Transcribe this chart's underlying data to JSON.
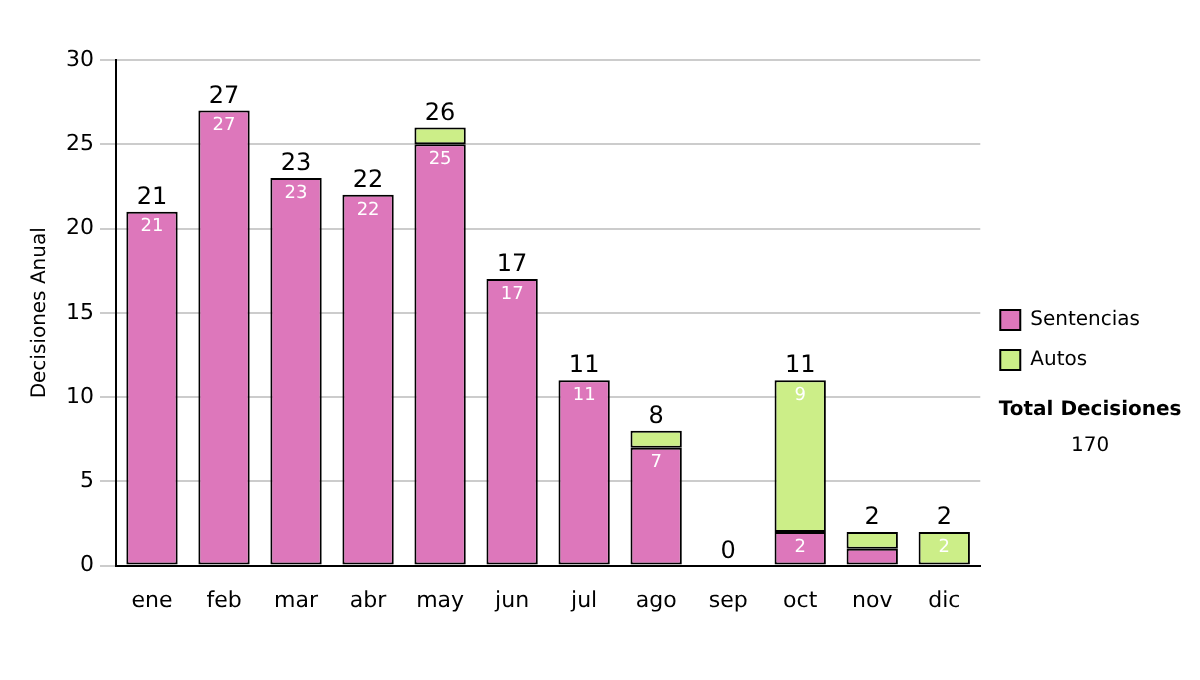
{
  "chart_data": {
    "type": "bar",
    "stacked": true,
    "ylabel": "Decisiones Anual",
    "categories": [
      "ene",
      "feb",
      "mar",
      "abr",
      "may",
      "jun",
      "jul",
      "ago",
      "sep",
      "oct",
      "nov",
      "dic"
    ],
    "series": [
      {
        "name": "Sentencias",
        "color": "#dd77bb",
        "values": [
          21,
          27,
          23,
          22,
          25,
          17,
          11,
          7,
          0,
          2,
          1,
          0
        ],
        "value_labels": [
          "21",
          "27",
          "23",
          "22",
          "25",
          "17",
          "11",
          "7",
          null,
          "2",
          null,
          null
        ]
      },
      {
        "name": "Autos",
        "color": "#ccee88",
        "values": [
          0,
          0,
          0,
          0,
          1,
          0,
          0,
          1,
          0,
          9,
          1,
          2
        ],
        "value_labels": [
          null,
          null,
          null,
          null,
          null,
          null,
          null,
          null,
          null,
          "9",
          null,
          "2"
        ]
      }
    ],
    "totals": [
      "21",
      "27",
      "23",
      "22",
      "26",
      "17",
      "11",
      "8",
      "0",
      "11",
      "2",
      "2"
    ],
    "ylim": [
      0,
      30
    ],
    "yticks": [
      0,
      5,
      10,
      15,
      20,
      25,
      30
    ],
    "grid": "y",
    "legend": "right",
    "annotations": [
      "Total Decisiones",
      "170"
    ]
  }
}
